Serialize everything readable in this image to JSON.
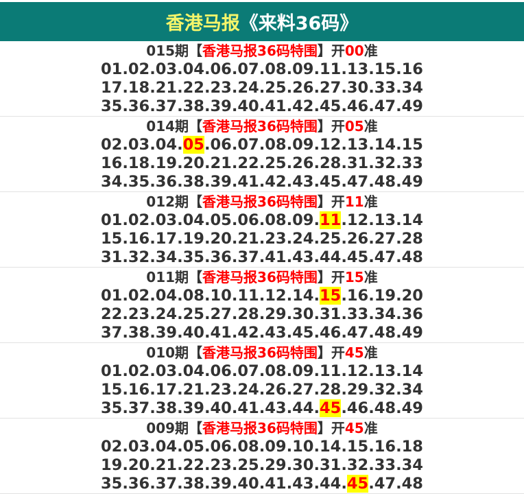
{
  "header": {
    "title_main": "香港马报",
    "title_sub": "《来料36码》"
  },
  "labels": {
    "period_suffix": "期",
    "bracket_open": "【",
    "bracket_close": "】",
    "product": "香港马报36码特围",
    "open": "开",
    "accurate": "准"
  },
  "colors": {
    "header_bg": "#0b7b76",
    "title_yellow": "#f5f56a",
    "accent_red": "#ff0000",
    "highlight": "#ffff00"
  },
  "issues": [
    {
      "period": "015",
      "result": "00",
      "lines": [
        [
          "01",
          "02",
          "03",
          "04",
          "06",
          "07",
          "08",
          "09",
          "11",
          "13",
          "15",
          "16"
        ],
        [
          "17",
          "18",
          "21",
          "22",
          "23",
          "24",
          "25",
          "26",
          "27",
          "30",
          "33",
          "34"
        ],
        [
          "35",
          "36",
          "37",
          "38",
          "39",
          "40",
          "41",
          "42",
          "45",
          "46",
          "47",
          "49"
        ]
      ]
    },
    {
      "period": "014",
      "result": "05",
      "lines": [
        [
          "02",
          "03",
          "04",
          "05",
          "06",
          "07",
          "08",
          "09",
          "12",
          "13",
          "14",
          "15"
        ],
        [
          "16",
          "18",
          "19",
          "20",
          "21",
          "22",
          "25",
          "26",
          "28",
          "31",
          "32",
          "33"
        ],
        [
          "34",
          "35",
          "36",
          "38",
          "39",
          "41",
          "42",
          "43",
          "45",
          "47",
          "48",
          "49"
        ]
      ]
    },
    {
      "period": "012",
      "result": "11",
      "lines": [
        [
          "01",
          "02",
          "03",
          "04",
          "05",
          "06",
          "08",
          "09",
          "11",
          "12",
          "13",
          "14"
        ],
        [
          "15",
          "16",
          "17",
          "19",
          "20",
          "21",
          "23",
          "24",
          "25",
          "26",
          "27",
          "28"
        ],
        [
          "31",
          "32",
          "34",
          "35",
          "36",
          "37",
          "41",
          "43",
          "44",
          "45",
          "47",
          "48"
        ]
      ]
    },
    {
      "period": "011",
      "result": "15",
      "lines": [
        [
          "01",
          "02",
          "04",
          "08",
          "10",
          "11",
          "12",
          "14",
          "15",
          "16",
          "19",
          "20"
        ],
        [
          "22",
          "23",
          "24",
          "25",
          "27",
          "28",
          "29",
          "30",
          "31",
          "33",
          "34",
          "36"
        ],
        [
          "37",
          "38",
          "39",
          "40",
          "41",
          "42",
          "43",
          "45",
          "46",
          "47",
          "48",
          "49"
        ]
      ]
    },
    {
      "period": "010",
      "result": "45",
      "lines": [
        [
          "01",
          "02",
          "03",
          "04",
          "06",
          "07",
          "08",
          "09",
          "11",
          "12",
          "13",
          "14"
        ],
        [
          "15",
          "16",
          "17",
          "21",
          "23",
          "24",
          "26",
          "27",
          "28",
          "29",
          "32",
          "34"
        ],
        [
          "35",
          "37",
          "38",
          "39",
          "40",
          "41",
          "43",
          "44",
          "45",
          "46",
          "48",
          "49"
        ]
      ]
    },
    {
      "period": "009",
      "result": "45",
      "lines": [
        [
          "02",
          "03",
          "04",
          "05",
          "06",
          "08",
          "09",
          "10",
          "14",
          "15",
          "16",
          "18"
        ],
        [
          "19",
          "20",
          "21",
          "22",
          "23",
          "25",
          "29",
          "30",
          "31",
          "32",
          "33",
          "34"
        ],
        [
          "35",
          "36",
          "37",
          "38",
          "39",
          "40",
          "41",
          "43",
          "44",
          "45",
          "47",
          "48"
        ]
      ]
    }
  ]
}
